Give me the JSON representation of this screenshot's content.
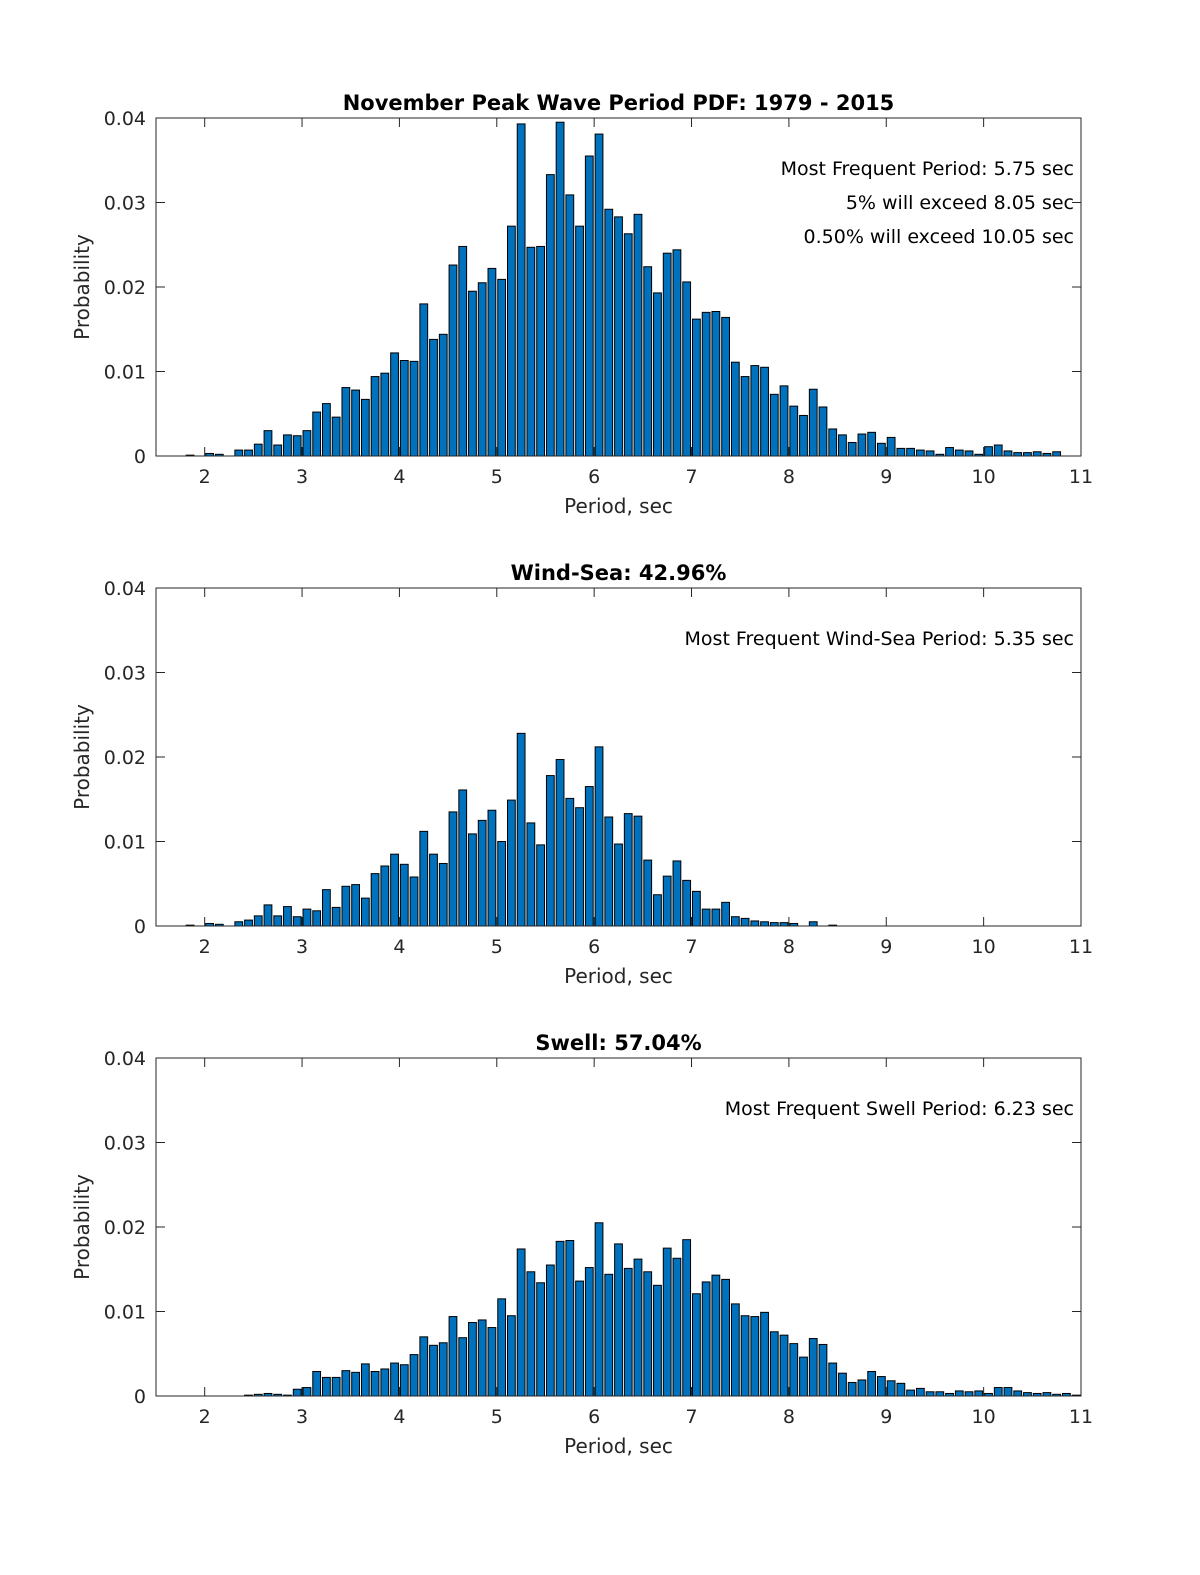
{
  "colors": {
    "bar_fill": "#0072BD",
    "bar_edge": "#000000",
    "axis": "#262626"
  },
  "chart_data": [
    {
      "type": "bar",
      "title": "November Peak Wave Period PDF: 1979 - 2015",
      "xlabel": "Period, sec",
      "ylabel": "Probability",
      "xlim": [
        1.5,
        11
      ],
      "ylim": [
        0,
        0.04
      ],
      "xticks": [
        "2",
        "3",
        "4",
        "5",
        "6",
        "7",
        "8",
        "9",
        "10",
        "11"
      ],
      "yticks": [
        "0",
        "0.01",
        "0.02",
        "0.03",
        "0.04"
      ],
      "grid": false,
      "annotations": [
        "Most Frequent Period: 5.75 sec",
        "5% will exceed 8.05 sec",
        "0.50% will exceed 10.05 sec"
      ],
      "bin_start": 1.55,
      "bin_width": 0.1,
      "values": [
        0,
        0,
        0,
        0.0001,
        0,
        0.0003,
        0.0002,
        0,
        0.0007,
        0.0007,
        0.0014,
        0.003,
        0.0013,
        0.0025,
        0.0024,
        0.003,
        0.0052,
        0.0062,
        0.0046,
        0.0081,
        0.0078,
        0.0067,
        0.0094,
        0.0098,
        0.0122,
        0.0113,
        0.0112,
        0.018,
        0.0138,
        0.0144,
        0.0226,
        0.0248,
        0.0195,
        0.0205,
        0.0222,
        0.0209,
        0.0272,
        0.0393,
        0.0247,
        0.0248,
        0.0333,
        0.0395,
        0.0309,
        0.0272,
        0.0355,
        0.0381,
        0.0292,
        0.0283,
        0.0263,
        0.0286,
        0.0224,
        0.0193,
        0.024,
        0.0244,
        0.0206,
        0.0162,
        0.017,
        0.0171,
        0.0164,
        0.0111,
        0.0094,
        0.0107,
        0.0105,
        0.0073,
        0.0083,
        0.0059,
        0.0048,
        0.0079,
        0.0058,
        0.0032,
        0.0025,
        0.0016,
        0.0026,
        0.0028,
        0.0015,
        0.0022,
        0.0009,
        0.0009,
        0.0007,
        0.0006,
        0.0002,
        0.001,
        0.0007,
        0.0006,
        0.0002,
        0.0011,
        0.0013,
        0.0006,
        0.0004,
        0.0004,
        0.0005,
        0.0003,
        0.0005,
        0,
        0
      ]
    },
    {
      "type": "bar",
      "title": "Wind-Sea: 42.96%",
      "xlabel": "Period, sec",
      "ylabel": "Probability",
      "xlim": [
        1.5,
        11
      ],
      "ylim": [
        0,
        0.04
      ],
      "xticks": [
        "2",
        "3",
        "4",
        "5",
        "6",
        "7",
        "8",
        "9",
        "10",
        "11"
      ],
      "yticks": [
        "0",
        "0.01",
        "0.02",
        "0.03",
        "0.04"
      ],
      "grid": false,
      "annotations": [
        "Most Frequent Wind-Sea Period: 5.35 sec"
      ],
      "bin_start": 1.55,
      "bin_width": 0.1,
      "values": [
        0,
        0,
        0,
        0.0001,
        0,
        0.0003,
        0.0002,
        0,
        0.0005,
        0.0007,
        0.0012,
        0.0025,
        0.0012,
        0.0023,
        0.0011,
        0.002,
        0.0018,
        0.0043,
        0.0022,
        0.0047,
        0.0049,
        0.0033,
        0.0062,
        0.0071,
        0.0085,
        0.0073,
        0.0058,
        0.0112,
        0.0085,
        0.0074,
        0.0135,
        0.0161,
        0.0109,
        0.0125,
        0.0137,
        0.01,
        0.0149,
        0.0228,
        0.0122,
        0.0096,
        0.0178,
        0.0197,
        0.0151,
        0.014,
        0.0165,
        0.0212,
        0.0129,
        0.0097,
        0.0133,
        0.013,
        0.0078,
        0.0037,
        0.0059,
        0.0077,
        0.0054,
        0.0041,
        0.002,
        0.002,
        0.0028,
        0.0011,
        0.0009,
        0.0006,
        0.0005,
        0.0004,
        0.0004,
        0.0003,
        0,
        0.0005,
        0,
        0.0001,
        0,
        0,
        0,
        0,
        0,
        0,
        0,
        0,
        0,
        0,
        0,
        0,
        0,
        0,
        0,
        0,
        0,
        0,
        0,
        0,
        0,
        0,
        0,
        0,
        0
      ]
    },
    {
      "type": "bar",
      "title": "Swell: 57.04%",
      "xlabel": "Period, sec",
      "ylabel": "Probability",
      "xlim": [
        1.5,
        11
      ],
      "ylim": [
        0,
        0.04
      ],
      "xticks": [
        "2",
        "3",
        "4",
        "5",
        "6",
        "7",
        "8",
        "9",
        "10",
        "11"
      ],
      "yticks": [
        "0",
        "0.01",
        "0.02",
        "0.03",
        "0.04"
      ],
      "grid": false,
      "annotations": [
        "Most Frequent Swell Period: 6.23 sec"
      ],
      "bin_start": 1.55,
      "bin_width": 0.1,
      "values": [
        0,
        0,
        0,
        0,
        0,
        0,
        0,
        0,
        0,
        0.0001,
        0.0002,
        0.0003,
        0.0002,
        0.0001,
        0.0008,
        0.001,
        0.0029,
        0.0022,
        0.0022,
        0.003,
        0.0028,
        0.0038,
        0.0029,
        0.0032,
        0.0039,
        0.0037,
        0.0049,
        0.007,
        0.006,
        0.0063,
        0.0094,
        0.0069,
        0.0087,
        0.009,
        0.0081,
        0.0115,
        0.0095,
        0.0174,
        0.0147,
        0.0134,
        0.0155,
        0.0183,
        0.0184,
        0.0136,
        0.0152,
        0.0205,
        0.0144,
        0.018,
        0.0151,
        0.0162,
        0.0147,
        0.0131,
        0.0175,
        0.0163,
        0.0185,
        0.0121,
        0.0135,
        0.0143,
        0.0138,
        0.0109,
        0.0095,
        0.0094,
        0.0099,
        0.0076,
        0.0072,
        0.0062,
        0.0046,
        0.0068,
        0.0061,
        0.0039,
        0.0027,
        0.0016,
        0.0019,
        0.0029,
        0.0023,
        0.0018,
        0.0015,
        0.0007,
        0.0009,
        0.0005,
        0.0005,
        0.0003,
        0.0006,
        0.0005,
        0.0006,
        0.0003,
        0.001,
        0.001,
        0.0006,
        0.0004,
        0.0003,
        0.0004,
        0.0002,
        0.0003,
        0.0001
      ]
    }
  ]
}
